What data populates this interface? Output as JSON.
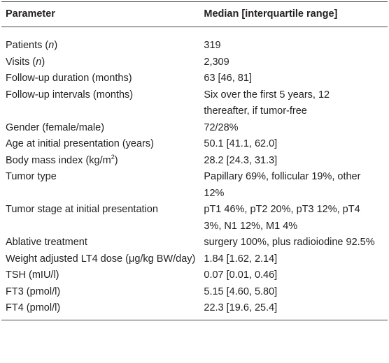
{
  "table": {
    "header": [
      "Parameter",
      "Median [interquartile range]"
    ],
    "rows": [
      {
        "parameter": [
          "Patients (",
          "n",
          ")"
        ],
        "value": "319"
      },
      {
        "parameter": [
          "Visits (",
          "n",
          ")"
        ],
        "value": "2,309"
      },
      {
        "parameter": [
          "Follow-up duration (months)"
        ],
        "value": "63 [46, 81]"
      },
      {
        "parameter": [
          "Follow-up intervals (months)"
        ],
        "value": "Six over the first 5 years, 12 thereafter, if tumor-free"
      },
      {
        "parameter": [
          "Gender (female/male)"
        ],
        "value": "72/28%"
      },
      {
        "parameter": [
          "Age at initial presentation (years)"
        ],
        "value": "50.1 [41.1, 62.0]"
      },
      {
        "parameter": [
          "Body mass index (kg/m",
          "2",
          ")"
        ],
        "value": "28.2 [24.3, 31.3]"
      },
      {
        "parameter": [
          "Tumor type"
        ],
        "value": "Papillary 69%, follicular 19%, other 12%"
      },
      {
        "parameter": [
          "Tumor stage at initial presentation"
        ],
        "value": "pT1 46%, pT2 20%, pT3 12%, pT4 3%, N1 12%, M1 4%"
      },
      {
        "parameter": [
          "Ablative treatment"
        ],
        "value": "surgery 100%, plus radioiodine 92.5%"
      },
      {
        "parameter": [
          "Weight adjusted LT4 dose (μg/kg BW/day)"
        ],
        "value": "1.84 [1.62, 2.14]"
      },
      {
        "parameter": [
          "TSH (mIU/l)"
        ],
        "value": "0.07 [0.01, 0.46]"
      },
      {
        "parameter": [
          "FT3 (pmol/l)"
        ],
        "value": "5.15 [4.60, 5.80]"
      },
      {
        "parameter": [
          "FT4 (pmol/l)"
        ],
        "value": "22.3 [19.6, 25.4]"
      }
    ]
  }
}
